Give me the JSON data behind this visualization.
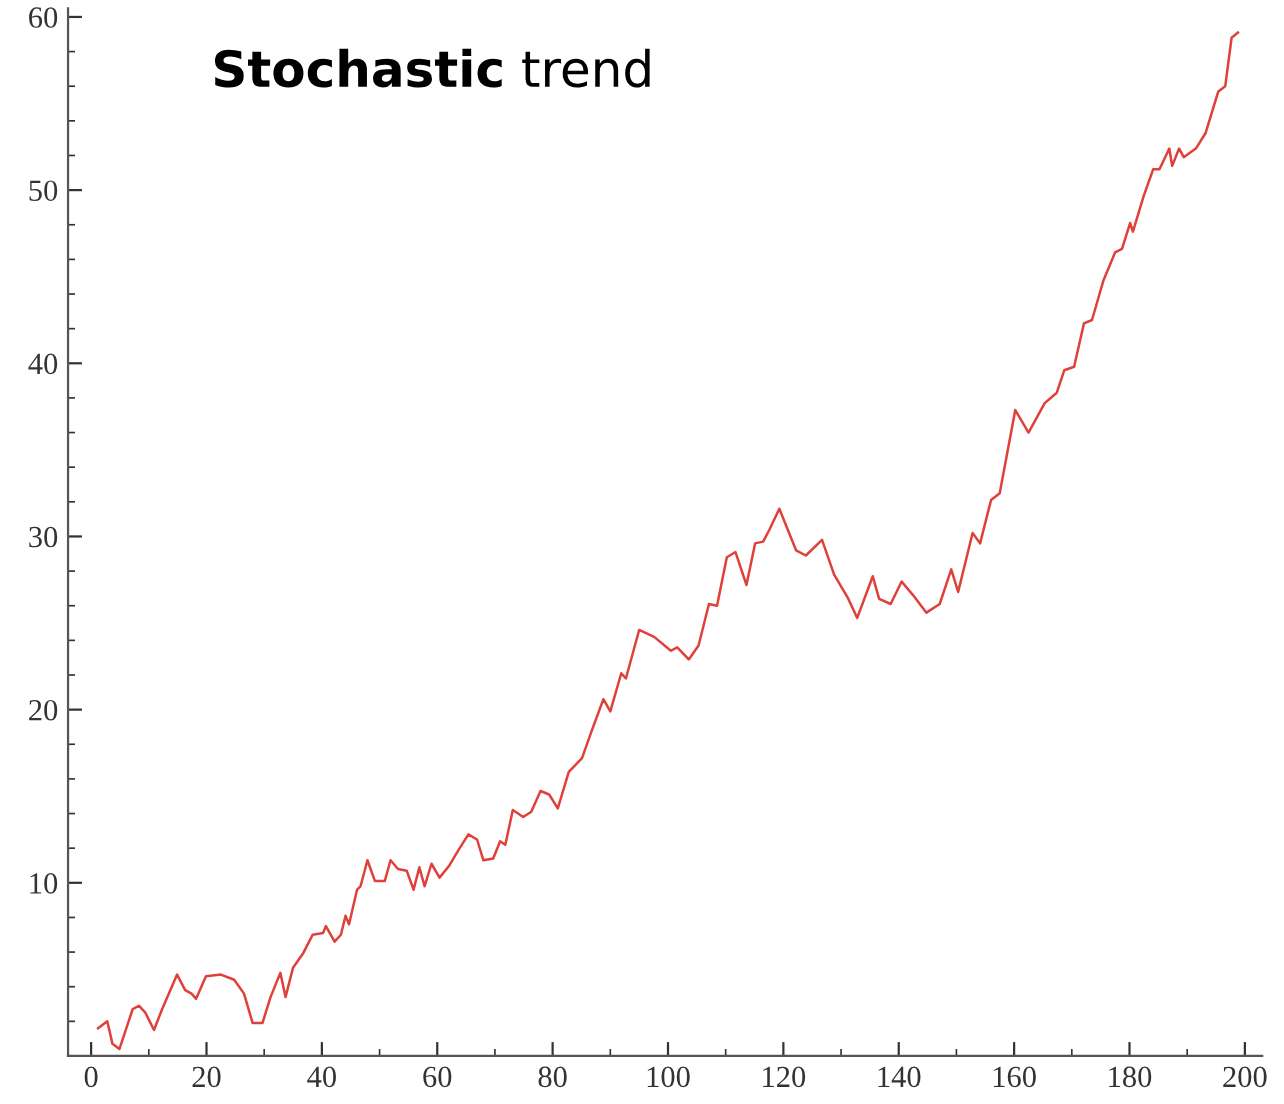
{
  "chart_data": {
    "type": "line",
    "title": "Stochastic trend",
    "xlim": [
      -4,
      203
    ],
    "ylim": [
      0,
      60.5
    ],
    "xticks": [
      0,
      {
        "value": 10,
        "label": null
      },
      20,
      {
        "value": 30,
        "label": null
      },
      40,
      {
        "value": 50,
        "label": null
      },
      60,
      {
        "value": 70,
        "label": null
      },
      80,
      {
        "value": 90,
        "label": null
      },
      100,
      {
        "value": 110,
        "label": null
      },
      120,
      {
        "value": 130,
        "label": null
      },
      140,
      {
        "value": 150,
        "label": null
      },
      160,
      {
        "value": 170,
        "label": null
      },
      180,
      {
        "value": 190,
        "label": null
      },
      200
    ],
    "yticks": [
      {
        "value": 2,
        "label": null
      },
      {
        "value": 4,
        "label": null
      },
      {
        "value": 6,
        "label": null
      },
      {
        "value": 8,
        "label": null
      },
      10,
      {
        "value": 12,
        "label": null
      },
      {
        "value": 14,
        "label": null
      },
      {
        "value": 16,
        "label": null
      },
      {
        "value": 18,
        "label": null
      },
      20,
      {
        "value": 22,
        "label": null
      },
      {
        "value": 24,
        "label": null
      },
      {
        "value": 26,
        "label": null
      },
      {
        "value": 28,
        "label": null
      },
      30,
      {
        "value": 32,
        "label": null
      },
      {
        "value": 34,
        "label": null
      },
      {
        "value": 36,
        "label": null
      },
      {
        "value": 38,
        "label": null
      },
      40,
      {
        "value": 42,
        "label": null
      },
      {
        "value": 44,
        "label": null
      },
      {
        "value": 46,
        "label": null
      },
      {
        "value": 48,
        "label": null
      },
      50,
      {
        "value": 52,
        "label": null
      },
      {
        "value": 54,
        "label": null
      },
      {
        "value": 56,
        "label": null
      },
      {
        "value": 58,
        "label": null
      },
      60
    ],
    "grid": false,
    "legend": false,
    "marker": "none",
    "line_style": "solid",
    "series": [
      {
        "color": "#e0403a",
        "x": [
          1.2,
          2.8,
          3.7,
          4.9,
          7.2,
          8.3,
          9.4,
          10.9,
          12.3,
          14.9,
          16.3,
          17.4,
          18.2,
          19.9,
          22.5,
          24.8,
          26.5,
          28.0,
          29.7,
          31.1,
          32.8,
          33.7,
          35.0,
          36.7,
          38.4,
          40.2,
          40.7,
          42.2,
          43.3,
          44.1,
          44.7,
          46.1,
          46.7,
          47.9,
          49.2,
          50.9,
          51.9,
          53.2,
          54.7,
          55.9,
          56.9,
          57.8,
          59.0,
          60.4,
          62.1,
          63.7,
          65.4,
          66.9,
          68.0,
          69.7,
          70.9,
          71.8,
          73.1,
          74.9,
          76.3,
          77.9,
          79.4,
          80.9,
          82.8,
          85.1,
          86.8,
          88.8,
          90.0,
          91.9,
          92.7,
          95.0,
          97.6,
          100.5,
          101.6,
          103.6,
          105.3,
          107.1,
          108.5,
          110.2,
          111.7,
          113.6,
          115.1,
          116.5,
          117.6,
          119.3,
          122.2,
          123.9,
          126.7,
          128.8,
          131.1,
          132.8,
          135.5,
          136.6,
          138.6,
          140.5,
          142.5,
          144.8,
          147.1,
          149.1,
          150.3,
          152.8,
          154.1,
          156.0,
          157.5,
          160.2,
          162.5,
          165.3,
          167.4,
          168.7,
          170.4,
          172.1,
          173.5,
          175.5,
          177.5,
          178.7,
          180.1,
          180.6,
          182.4,
          184.1,
          185.2,
          186.9,
          187.4,
          188.6,
          189.4,
          191.5,
          193.2,
          195.4,
          196.6,
          197.7,
          198.8
        ],
        "values": [
          1.6,
          2.0,
          0.7,
          0.4,
          2.7,
          2.9,
          2.5,
          1.5,
          2.7,
          4.7,
          3.8,
          3.6,
          3.3,
          4.6,
          4.7,
          4.4,
          3.6,
          1.9,
          1.9,
          3.4,
          4.8,
          3.4,
          5.1,
          5.9,
          7.0,
          7.1,
          7.5,
          6.6,
          7.0,
          8.1,
          7.6,
          9.6,
          9.8,
          11.3,
          10.1,
          10.1,
          11.3,
          10.8,
          10.7,
          9.6,
          10.9,
          9.8,
          11.1,
          10.3,
          11.0,
          11.9,
          12.8,
          12.5,
          11.3,
          11.4,
          12.4,
          12.2,
          14.2,
          13.8,
          14.1,
          15.3,
          15.1,
          14.3,
          16.4,
          17.2,
          18.8,
          20.6,
          19.9,
          22.1,
          21.8,
          24.6,
          24.2,
          23.4,
          23.6,
          22.9,
          23.7,
          26.1,
          26.0,
          28.8,
          29.1,
          27.2,
          29.6,
          29.7,
          30.4,
          31.6,
          29.2,
          28.9,
          29.8,
          27.8,
          26.5,
          25.3,
          27.7,
          26.4,
          26.1,
          27.4,
          26.6,
          25.6,
          26.1,
          28.1,
          26.8,
          30.2,
          29.6,
          32.1,
          32.5,
          37.3,
          36.0,
          37.7,
          38.3,
          39.6,
          39.8,
          42.3,
          42.5,
          44.8,
          46.4,
          46.6,
          48.1,
          47.6,
          49.6,
          51.2,
          51.2,
          52.4,
          51.4,
          52.4,
          51.9,
          52.4,
          53.3,
          55.7,
          56.0,
          58.8,
          59.1
        ]
      }
    ]
  }
}
